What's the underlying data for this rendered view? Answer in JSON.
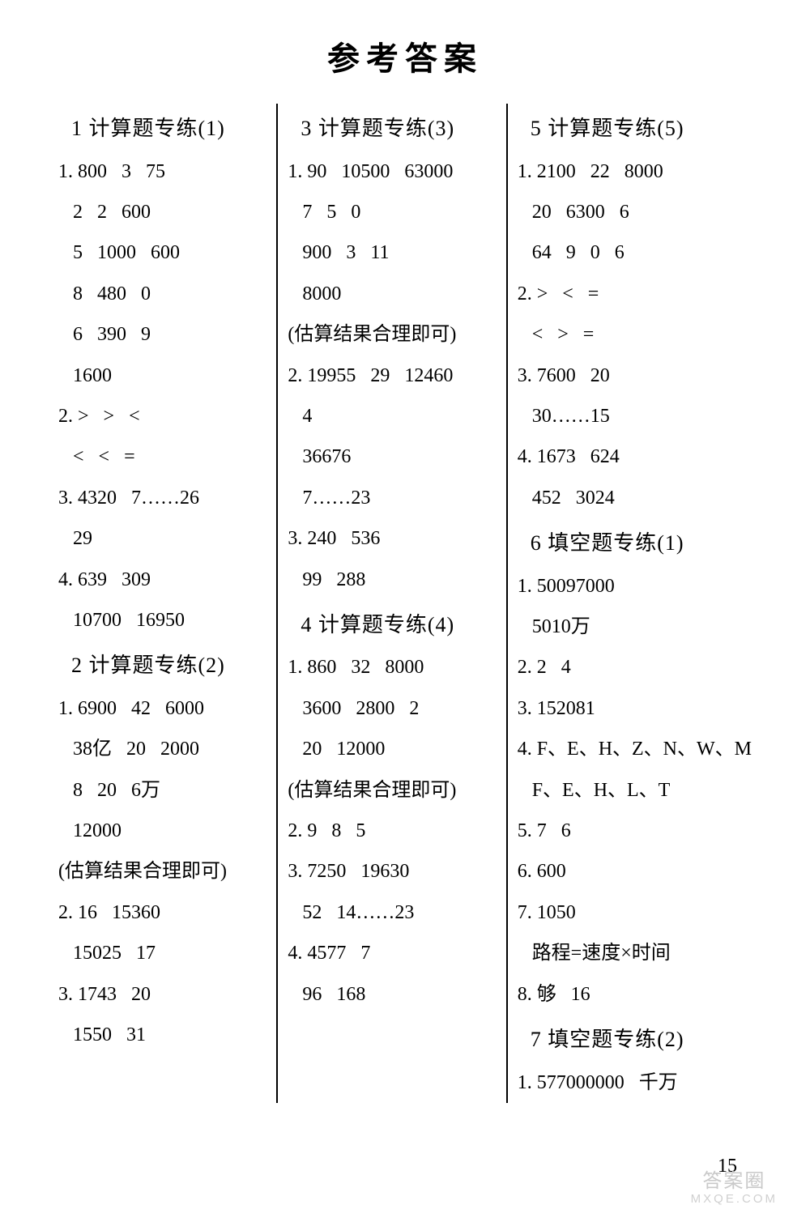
{
  "title": "参考答案",
  "page_number": "15",
  "watermark_top": "答案圈",
  "watermark_sub": "MXQE.COM",
  "col1": {
    "sections": [
      {
        "heading": "1 计算题专练(1)",
        "lines": [
          "1. 800   3   75",
          "   2   2   600",
          "   5   1000   600",
          "   8   480   0",
          "   6   390   9",
          "   1600",
          "2. >   >   <",
          "   <   <   =",
          "3. 4320   7……26",
          "   29",
          "4. 639   309",
          "   10700   16950"
        ]
      },
      {
        "heading": "2 计算题专练(2)",
        "lines": [
          "1. 6900   42   6000",
          "   38亿   20   2000",
          "   8   20   6万",
          "   12000",
          "   (估算结果合理即可)",
          "2. 16   15360",
          "   15025   17",
          "3. 1743   20",
          "   1550   31"
        ]
      }
    ]
  },
  "col2": {
    "sections": [
      {
        "heading": "3 计算题专练(3)",
        "lines": [
          "1. 90   10500   63000",
          "   7   5   0",
          "   900   3   11",
          "   8000",
          "   (估算结果合理即可)",
          "2. 19955   29   12460",
          "   4",
          "   36676",
          "   7……23",
          "3. 240   536",
          "   99   288"
        ]
      },
      {
        "heading": "4 计算题专练(4)",
        "lines": [
          "1. 860   32   8000",
          "   3600   2800   2",
          "   20   12000",
          "   (估算结果合理即可)",
          "2. 9   8   5",
          "3. 7250   19630",
          "   52   14……23",
          "4. 4577   7",
          "   96   168"
        ]
      }
    ]
  },
  "col3": {
    "sections": [
      {
        "heading": "5 计算题专练(5)",
        "lines": [
          "1. 2100   22   8000",
          "   20   6300   6",
          "   64   9   0   6",
          "2. >   <   =",
          "   <   >   =",
          "3. 7600   20",
          "   30……15",
          "4. 1673   624",
          "   452   3024"
        ]
      },
      {
        "heading": "6 填空题专练(1)",
        "lines": [
          "1. 50097000",
          "   5010万",
          "2. 2   4",
          "3. 152081",
          "4. F、E、H、Z、N、W、M",
          "   F、E、H、L、T",
          "5. 7   6",
          "6. 600",
          "7. 1050",
          "   路程=速度×时间",
          "8. 够   16"
        ]
      },
      {
        "heading": "7 填空题专练(2)",
        "lines": [
          "1. 577000000   千万"
        ]
      }
    ]
  }
}
